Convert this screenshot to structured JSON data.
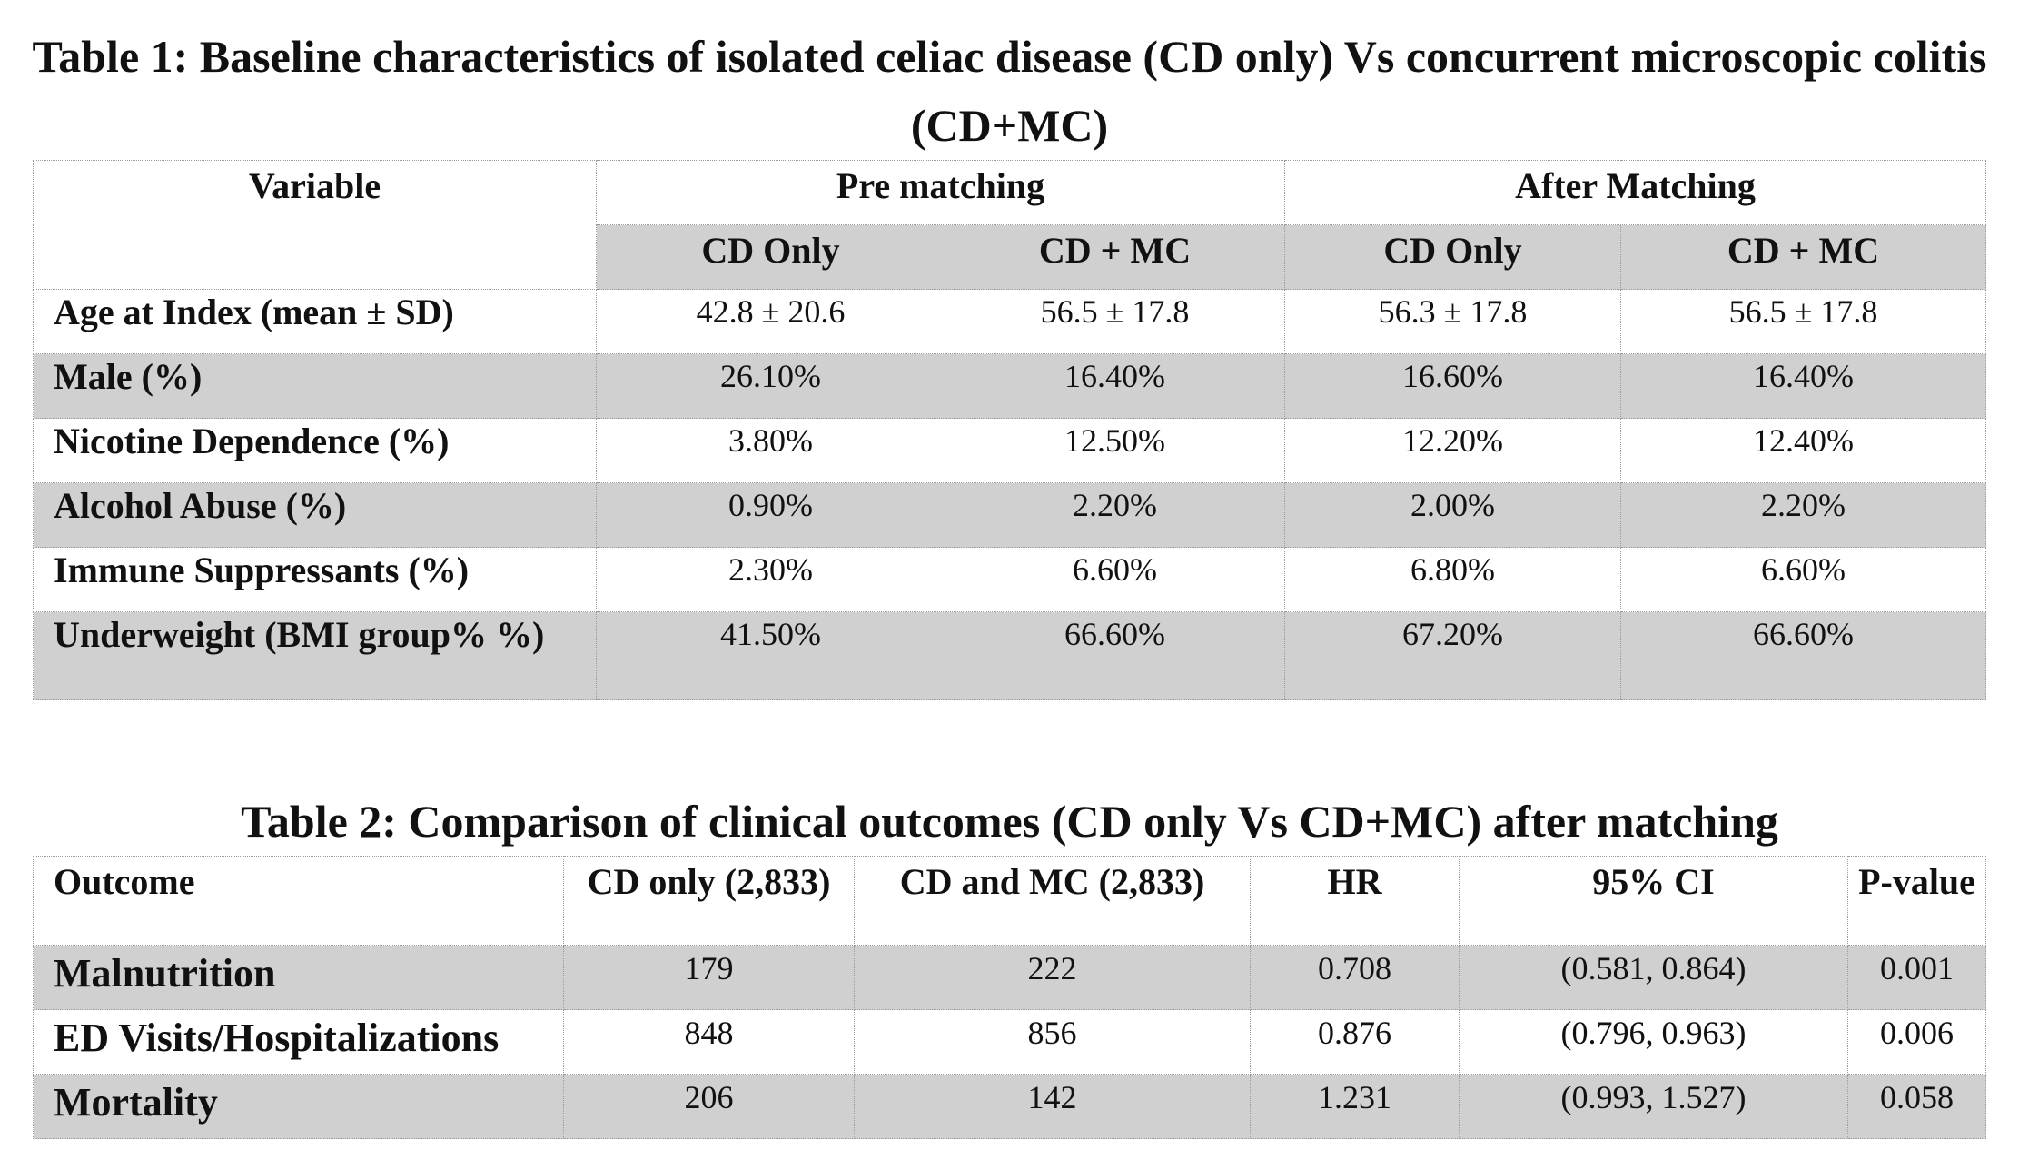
{
  "table1": {
    "title": "Table 1: Baseline characteristics of isolated celiac disease (CD only) Vs concurrent microscopic colitis (CD+MC)",
    "header": {
      "variable": "Variable",
      "pre_matching": "Pre matching",
      "after_matching": "After Matching",
      "subcols": [
        "CD Only",
        "CD + MC",
        "CD Only",
        "CD + MC"
      ]
    },
    "rows": [
      {
        "label": "Age at Index (mean ± SD)",
        "values": [
          "42.8 ± 20.6",
          "56.5 ± 17.8",
          "56.3 ± 17.8",
          "56.5 ± 17.8"
        ]
      },
      {
        "label": "Male (%)",
        "values": [
          "26.10%",
          "16.40%",
          "16.60%",
          "16.40%"
        ]
      },
      {
        "label": "Nicotine Dependence (%)",
        "values": [
          "3.80%",
          "12.50%",
          "12.20%",
          "12.40%"
        ]
      },
      {
        "label": "Alcohol Abuse (%)",
        "values": [
          "0.90%",
          "2.20%",
          "2.00%",
          "2.20%"
        ]
      },
      {
        "label": "Immune Suppressants (%)",
        "values": [
          "2.30%",
          "6.60%",
          "6.80%",
          "6.60%"
        ]
      },
      {
        "label": "Underweight (BMI group% %)",
        "values": [
          "41.50%",
          "66.60%",
          "67.20%",
          "66.60%"
        ]
      }
    ]
  },
  "table2": {
    "title": "Table 2: Comparison of clinical outcomes (CD only Vs CD+MC) after matching",
    "header": [
      "Outcome",
      "CD only (2,833)",
      "CD and MC (2,833)",
      "HR",
      "95% CI",
      "P-value"
    ],
    "rows": [
      {
        "label": "Malnutrition",
        "values": [
          "179",
          "222",
          "0.708",
          "(0.581, 0.864)",
          "0.001"
        ]
      },
      {
        "label": "ED Visits/Hospitalizations",
        "values": [
          "848",
          "856",
          "0.876",
          "(0.796, 0.963)",
          "0.006"
        ]
      },
      {
        "label": "Mortality",
        "values": [
          "206",
          "142",
          "1.231",
          "(0.993, 1.527)",
          "0.058"
        ]
      }
    ]
  }
}
